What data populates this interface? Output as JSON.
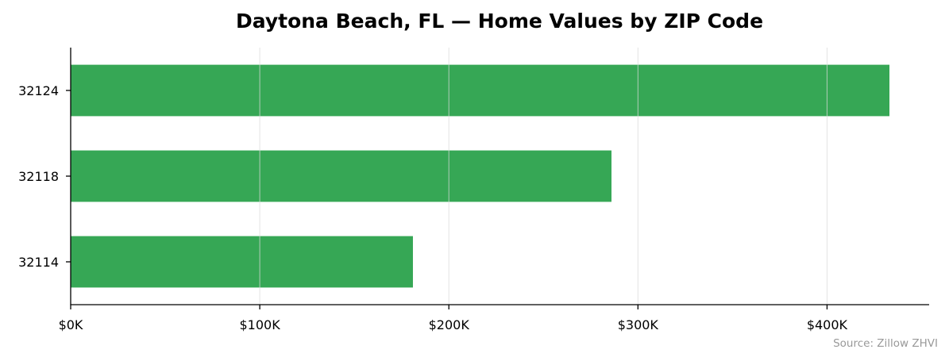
{
  "chart_data": {
    "type": "bar",
    "orientation": "horizontal",
    "title": "Daytona Beach, FL — Home Values by ZIP Code",
    "xlabel": "",
    "ylabel": "",
    "categories": [
      "32124",
      "32118",
      "32114"
    ],
    "values": [
      433000,
      286000,
      181000
    ],
    "xlim": [
      0,
      454000
    ],
    "x_ticks": [
      0,
      100000,
      200000,
      300000,
      400000
    ],
    "x_tick_labels": [
      "$0K",
      "$100K",
      "$200K",
      "$300K",
      "$400K"
    ],
    "grid": "vertical",
    "bar_color": "#36a755",
    "source_note": "Source: Zillow ZHVI"
  }
}
